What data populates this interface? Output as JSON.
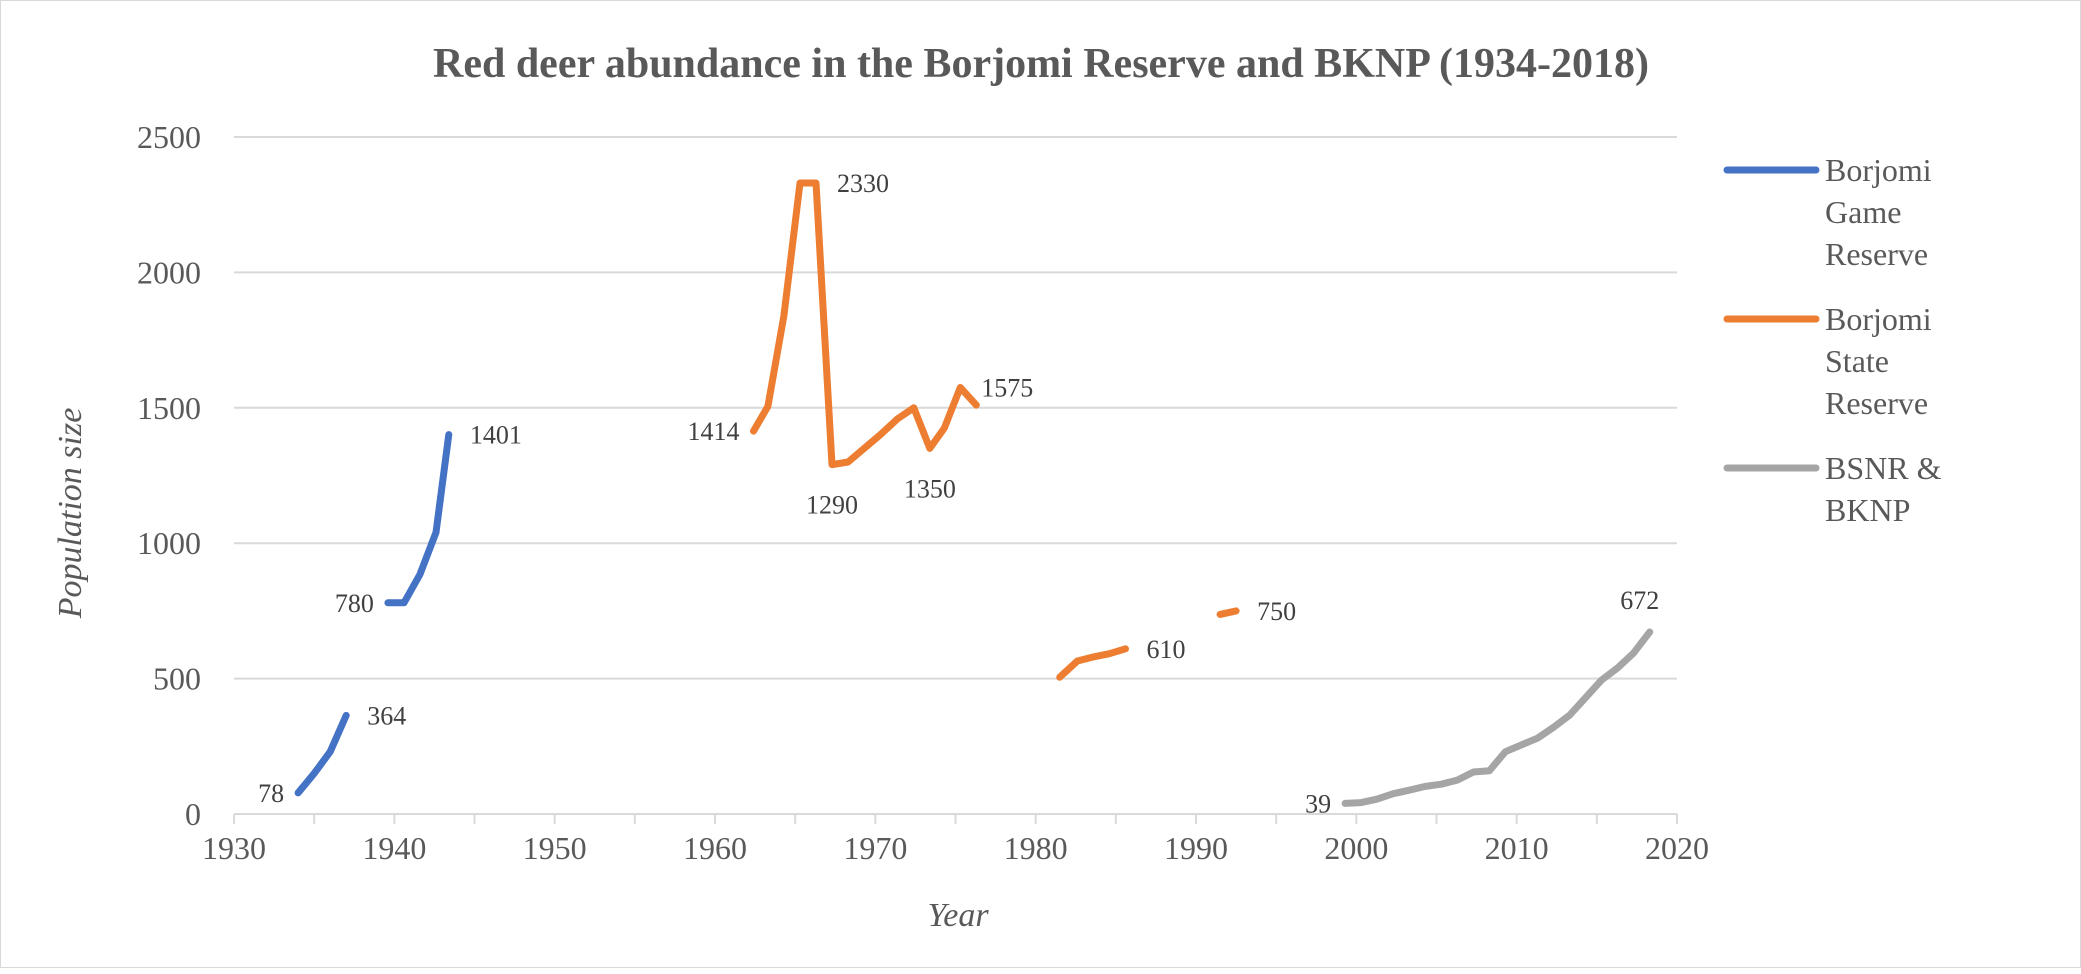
{
  "chart_data": {
    "type": "line",
    "title": "Red deer abundance in the Borjomi Reserve and BKNP (1934-2018)",
    "xlabel": "Year",
    "ylabel": "Population size",
    "xlim": [
      1930,
      2020
    ],
    "ylim": [
      0,
      2500
    ],
    "x_ticks": [
      "1930",
      "1940",
      "1950",
      "1960",
      "1970",
      "1980",
      "1990",
      "2000",
      "2010",
      "2020"
    ],
    "y_ticks": [
      "0",
      "500",
      "1000",
      "1500",
      "2000",
      "2500"
    ],
    "grid": "horizontal",
    "legend_position": "right",
    "series": [
      {
        "name": "Borjomi Game Reserve",
        "color": "#4472c4",
        "segments": [
          [
            [
              1934,
              78
            ],
            [
              1935,
              150
            ],
            [
              1936,
              230
            ],
            [
              1937,
              364
            ]
          ],
          [
            [
              1939.6,
              780
            ],
            [
              1940.6,
              780
            ],
            [
              1941.6,
              885
            ],
            [
              1942.6,
              1040
            ],
            [
              1943.4,
              1401
            ]
          ]
        ]
      },
      {
        "name": "Borjomi State Reserve",
        "color": "#ed7d31",
        "segments": [
          [
            [
              1962.4,
              1414
            ],
            [
              1963.3,
              1505
            ],
            [
              1964.3,
              1840
            ],
            [
              1965.3,
              2330
            ],
            [
              1966.3,
              2330
            ],
            [
              1967.3,
              1290
            ],
            [
              1968.3,
              1300
            ],
            [
              1969.3,
              1350
            ],
            [
              1970.3,
              1400
            ],
            [
              1971.4,
              1460
            ],
            [
              1972.4,
              1500
            ],
            [
              1973.4,
              1350
            ],
            [
              1974.3,
              1425
            ],
            [
              1975.3,
              1575
            ],
            [
              1976.3,
              1510
            ]
          ],
          [
            [
              1981.5,
              505
            ],
            [
              1982.6,
              565
            ],
            [
              1983.6,
              580
            ],
            [
              1984.6,
              592
            ],
            [
              1985.6,
              610
            ]
          ],
          [
            [
              1991.5,
              737
            ],
            [
              1992.5,
              750
            ]
          ]
        ]
      },
      {
        "name": "BSNR & BKNP",
        "color": "#a5a5a5",
        "segments": [
          [
            [
              1999.3,
              39
            ],
            [
              2000.3,
              42
            ],
            [
              2001.3,
              55
            ],
            [
              2002.3,
              75
            ],
            [
              2003.3,
              88
            ],
            [
              2004.3,
              102
            ],
            [
              2005.3,
              110
            ],
            [
              2006.3,
              125
            ],
            [
              2007.3,
              155
            ],
            [
              2008.3,
              160
            ],
            [
              2009.3,
              230
            ],
            [
              2010.3,
              255
            ],
            [
              2011.3,
              280
            ],
            [
              2012.3,
              320
            ],
            [
              2013.3,
              365
            ],
            [
              2014.3,
              430
            ],
            [
              2015.3,
              495
            ],
            [
              2016.3,
              540
            ],
            [
              2017.3,
              595
            ],
            [
              2018.3,
              672
            ]
          ]
        ]
      }
    ],
    "data_labels": [
      {
        "text": "78",
        "x": 1934,
        "y": 78,
        "pos": "left"
      },
      {
        "text": "364",
        "x": 1937,
        "y": 364,
        "pos": "right"
      },
      {
        "text": "780",
        "x": 1939.6,
        "y": 780,
        "pos": "left"
      },
      {
        "text": "1401",
        "x": 1943.4,
        "y": 1401,
        "pos": "right"
      },
      {
        "text": "1414",
        "x": 1962.4,
        "y": 1414,
        "pos": "left"
      },
      {
        "text": "2330",
        "x": 1966.3,
        "y": 2330,
        "pos": "right"
      },
      {
        "text": "1290",
        "x": 1967.3,
        "y": 1290,
        "pos": "below"
      },
      {
        "text": "1350",
        "x": 1973.4,
        "y": 1350,
        "pos": "below"
      },
      {
        "text": "1575",
        "x": 1975.3,
        "y": 1575,
        "pos": "right"
      },
      {
        "text": "610",
        "x": 1985.6,
        "y": 610,
        "pos": "right"
      },
      {
        "text": "750",
        "x": 1992.5,
        "y": 750,
        "pos": "right"
      },
      {
        "text": "39",
        "x": 1999.3,
        "y": 39,
        "pos": "left"
      },
      {
        "text": "672",
        "x": 2018.3,
        "y": 672,
        "pos": "above"
      }
    ]
  },
  "legend": [
    {
      "lines": [
        "Borjomi",
        "Game",
        "Reserve"
      ],
      "color": "#4472c4"
    },
    {
      "lines": [
        "Borjomi",
        "State",
        "Reserve"
      ],
      "color": "#ed7d31"
    },
    {
      "lines": [
        "BSNR &",
        "BKNP"
      ],
      "color": "#a5a5a5"
    }
  ]
}
